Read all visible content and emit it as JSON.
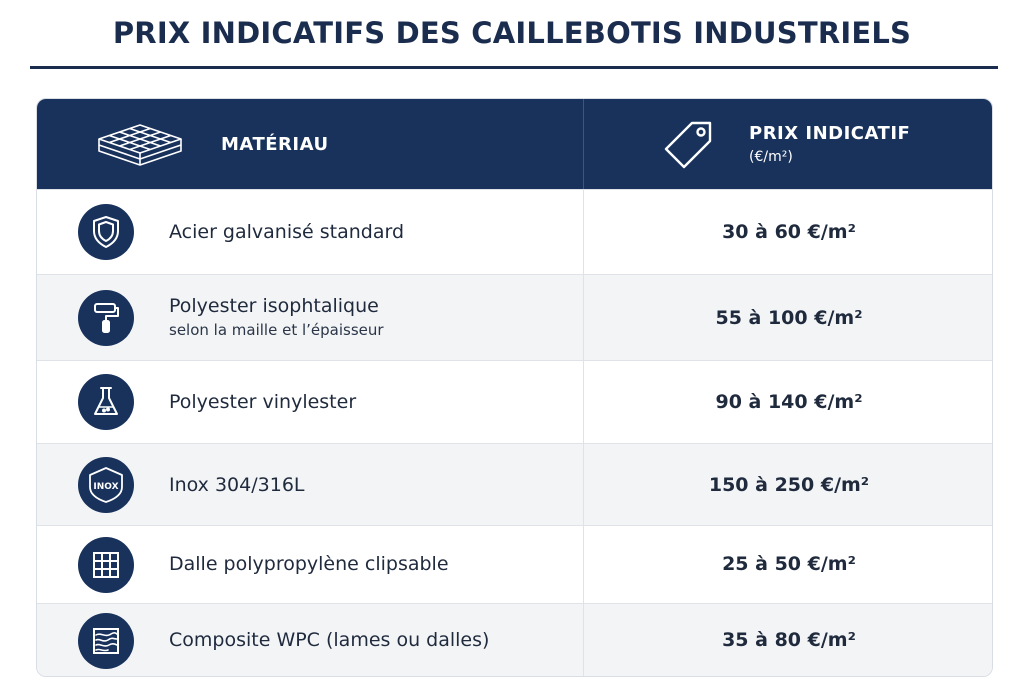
{
  "title": "PRIX INDICATIFS DES CAILLEBOTIS INDUSTRIELS",
  "header": {
    "material_label": "MATÉRIAU",
    "price_label": "PRIX INDICATIF",
    "price_unit": "(€/m²)",
    "material_icon": "grating-grid-icon",
    "price_icon": "price-tag-icon"
  },
  "rows": [
    {
      "material": "Acier galvanisé standard",
      "note": "",
      "price": "30 à 60 €/m²",
      "icon": "shield-icon"
    },
    {
      "material": "Polyester isophtalique",
      "note": "selon la maille et l’épaisseur",
      "price": "55 à 100 €/m²",
      "icon": "paint-roller-icon"
    },
    {
      "material": "Polyester vinylester",
      "note": "",
      "price": "90 à 140 €/m²",
      "icon": "flask-icon"
    },
    {
      "material": "Inox 304/316L",
      "note": "",
      "price": "150 à 250 €/m²",
      "icon": "inox-shield-icon",
      "icon_text": "INOX"
    },
    {
      "material": "Dalle polypropylène clipsable",
      "note": "",
      "price": "25 à 50 €/m²",
      "icon": "grid-tile-icon"
    },
    {
      "material": "Composite WPC (lames ou dalles)",
      "note": "",
      "price": "35 à 80 €/m²",
      "icon": "wood-grain-icon"
    }
  ],
  "colors": {
    "navy": "#18325c",
    "row_alt": "#f3f4f6",
    "border": "#dfe3e8"
  }
}
